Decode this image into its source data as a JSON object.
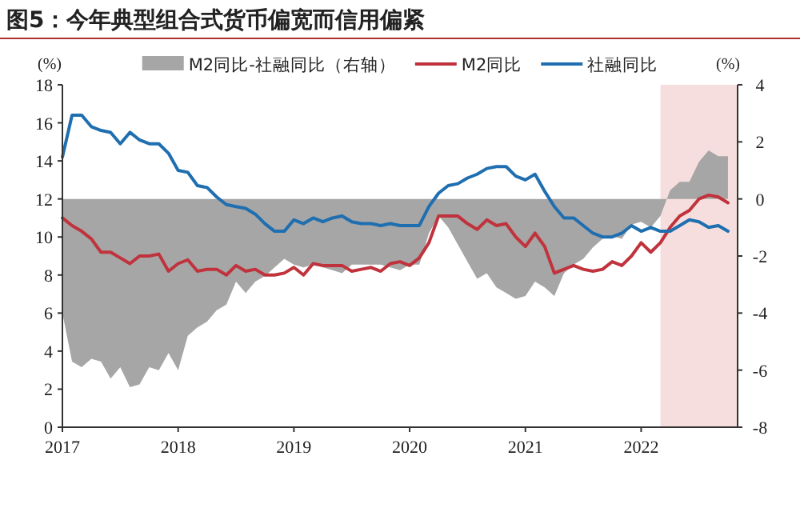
{
  "chart_data": {
    "type": "line",
    "title": "图5：今年典型组合式货币偏宽而信用偏紧",
    "ylabel": "(%)",
    "y2label": "(%)",
    "x": [
      "2017-01",
      "2017-02",
      "2017-03",
      "2017-04",
      "2017-05",
      "2017-06",
      "2017-07",
      "2017-08",
      "2017-09",
      "2017-10",
      "2017-11",
      "2017-12",
      "2018-01",
      "2018-02",
      "2018-03",
      "2018-04",
      "2018-05",
      "2018-06",
      "2018-07",
      "2018-08",
      "2018-09",
      "2018-10",
      "2018-11",
      "2018-12",
      "2019-01",
      "2019-02",
      "2019-03",
      "2019-04",
      "2019-05",
      "2019-06",
      "2019-07",
      "2019-08",
      "2019-09",
      "2019-10",
      "2019-11",
      "2019-12",
      "2020-01",
      "2020-02",
      "2020-03",
      "2020-04",
      "2020-05",
      "2020-06",
      "2020-07",
      "2020-08",
      "2020-09",
      "2020-10",
      "2020-11",
      "2020-12",
      "2021-01",
      "2021-02",
      "2021-03",
      "2021-04",
      "2021-05",
      "2021-06",
      "2021-07",
      "2021-08",
      "2021-09",
      "2021-10",
      "2021-11",
      "2021-12",
      "2022-01",
      "2022-02",
      "2022-03",
      "2022-04",
      "2022-05",
      "2022-06",
      "2022-07",
      "2022-08",
      "2022-09",
      "2022-10"
    ],
    "series": [
      {
        "name": "M2同比-社融同比（右轴）",
        "type": "area",
        "axis": "y2",
        "color": "#a6a6a6",
        "values": [
          -4.0,
          -5.7,
          -5.9,
          -5.6,
          -5.7,
          -6.3,
          -5.9,
          -6.6,
          -6.5,
          -5.9,
          -6.0,
          -5.4,
          -6.0,
          -4.8,
          -4.5,
          -4.3,
          -3.9,
          -3.7,
          -2.9,
          -3.3,
          -2.9,
          -2.7,
          -2.4,
          -2.1,
          -2.3,
          -2.4,
          -2.3,
          -2.4,
          -2.5,
          -2.6,
          -2.3,
          -2.3,
          -2.3,
          -2.3,
          -2.4,
          -2.5,
          -2.3,
          -2.3,
          -1.2,
          -0.6,
          -1.0,
          -1.6,
          -2.2,
          -2.8,
          -2.6,
          -3.1,
          -3.3,
          -3.5,
          -3.4,
          -2.9,
          -3.1,
          -3.4,
          -2.6,
          -2.3,
          -2.1,
          -1.7,
          -1.4,
          -1.3,
          -1.4,
          -0.9,
          -0.8,
          -1.0,
          -0.6,
          0.3,
          0.6,
          0.6,
          1.3,
          1.7,
          1.5,
          1.5
        ]
      },
      {
        "name": "M2同比",
        "color": "#c0333d",
        "values": [
          11.0,
          10.6,
          10.3,
          9.9,
          9.2,
          9.2,
          8.9,
          8.6,
          9.0,
          9.0,
          9.1,
          8.2,
          8.6,
          8.8,
          8.2,
          8.3,
          8.3,
          8.0,
          8.5,
          8.2,
          8.3,
          8.0,
          8.0,
          8.1,
          8.4,
          8.0,
          8.6,
          8.5,
          8.5,
          8.5,
          8.2,
          8.3,
          8.4,
          8.2,
          8.6,
          8.7,
          8.5,
          8.9,
          9.7,
          11.1,
          11.1,
          11.1,
          10.7,
          10.4,
          10.9,
          10.6,
          10.7,
          10.0,
          9.5,
          10.2,
          9.5,
          8.1,
          8.3,
          8.5,
          8.3,
          8.2,
          8.3,
          8.7,
          8.5,
          9.0,
          9.7,
          9.2,
          9.7,
          10.5,
          11.1,
          11.4,
          12.0,
          12.2,
          12.1,
          11.8
        ]
      },
      {
        "name": "社融同比",
        "color": "#1f6fb0",
        "values": [
          14.2,
          16.4,
          16.4,
          15.8,
          15.6,
          15.5,
          14.9,
          15.5,
          15.1,
          14.9,
          14.9,
          14.4,
          13.5,
          13.4,
          12.7,
          12.6,
          12.1,
          11.7,
          11.6,
          11.5,
          11.2,
          10.7,
          10.3,
          10.3,
          10.9,
          10.7,
          11.0,
          10.8,
          11.0,
          11.1,
          10.8,
          10.7,
          10.7,
          10.6,
          10.7,
          10.6,
          10.6,
          10.6,
          11.6,
          12.3,
          12.7,
          12.8,
          13.1,
          13.3,
          13.6,
          13.7,
          13.7,
          13.2,
          13.0,
          13.3,
          12.4,
          11.6,
          11.0,
          11.0,
          10.6,
          10.2,
          10.0,
          10.0,
          10.2,
          10.6,
          10.3,
          10.5,
          10.3,
          10.3,
          10.6,
          10.9,
          10.8,
          10.5,
          10.6,
          10.3
        ]
      }
    ],
    "xlim": [
      "2017-01",
      "2022-11"
    ],
    "xticks": [
      {
        "value": "2017-01",
        "label": "2017"
      },
      {
        "value": "2018-01",
        "label": "2018"
      },
      {
        "value": "2019-01",
        "label": "2019"
      },
      {
        "value": "2020-01",
        "label": "2020"
      },
      {
        "value": "2021-01",
        "label": "2021"
      },
      {
        "value": "2022-01",
        "label": "2022"
      }
    ],
    "ylim": [
      0,
      18
    ],
    "yticks": [
      0,
      2,
      4,
      6,
      8,
      10,
      12,
      14,
      16,
      18
    ],
    "y2lim": [
      -8,
      4
    ],
    "y2ticks": [
      -8,
      -6,
      -4,
      -2,
      0,
      2,
      4
    ],
    "bands": [
      {
        "axis": "x",
        "from": "2022-03",
        "to": "2022-11",
        "color": "#f6dede"
      }
    ],
    "legend": "top"
  }
}
